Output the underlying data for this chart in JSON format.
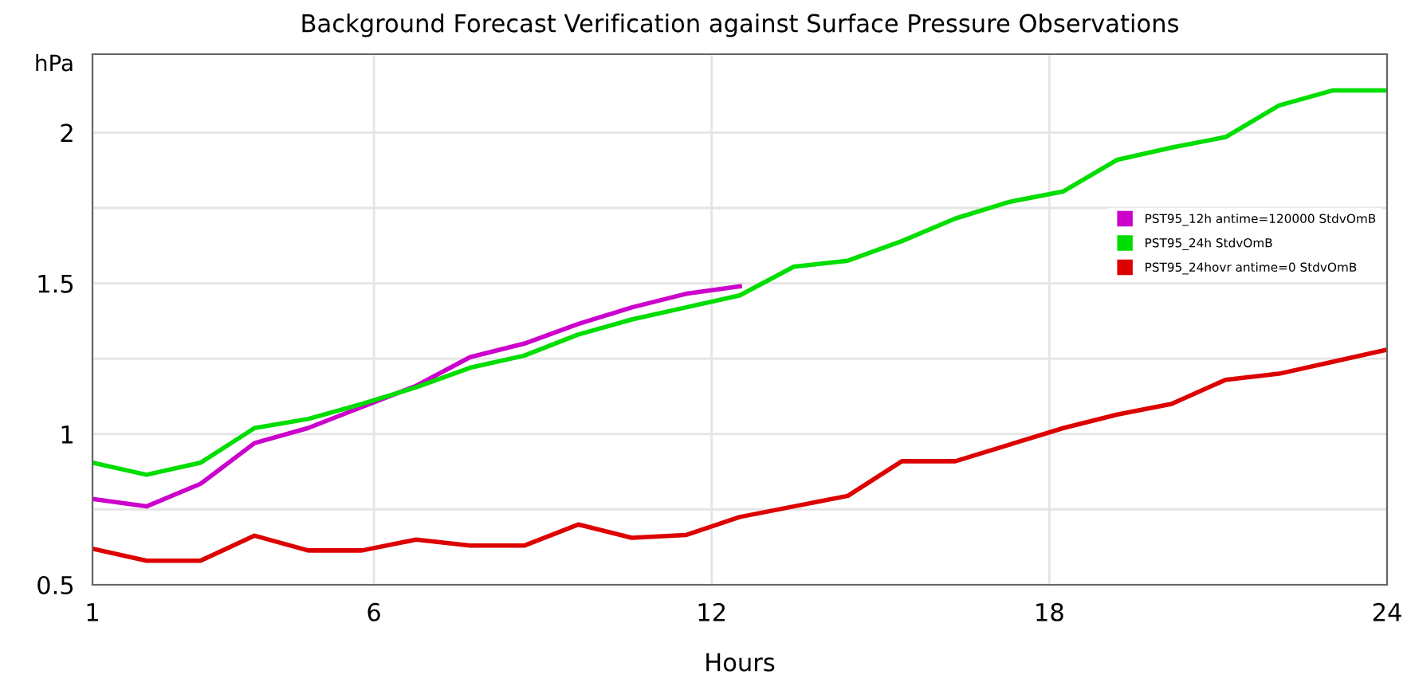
{
  "chart_data": {
    "type": "line",
    "title": "Background Forecast Verification against Surface Pressure Observations",
    "xlabel": "Hours",
    "ylabel": "hPa",
    "x": [
      1,
      1.96,
      2.92,
      3.88,
      4.83,
      5.79,
      6.75,
      7.71,
      8.67,
      9.63,
      10.58,
      11.54,
      12.5,
      13.46,
      14.42,
      15.38,
      16.33,
      17.29,
      18.25,
      19.21,
      20.17,
      21.13,
      22.08,
      23.04,
      24
    ],
    "series": [
      {
        "name": "PST95_12h antime=120000 StdvOmB",
        "color": "#cc00cc",
        "values": [
          0.785,
          0.76,
          0.835,
          0.97,
          1.02,
          1.09,
          1.16,
          1.255,
          1.3,
          1.365,
          1.42,
          1.465,
          1.49,
          null,
          null,
          null,
          null,
          null,
          null,
          null,
          null,
          null,
          null,
          null,
          null
        ]
      },
      {
        "name": "PST95_24h StdvOmB",
        "color": "#00dd00",
        "values": [
          0.905,
          0.865,
          0.905,
          1.02,
          1.05,
          1.1,
          1.155,
          1.22,
          1.26,
          1.33,
          1.38,
          1.42,
          1.46,
          1.555,
          1.575,
          1.64,
          1.715,
          1.77,
          1.805,
          1.91,
          1.95,
          1.985,
          2.09,
          2.14,
          2.14
        ]
      },
      {
        "name": "PST95_24hovr antime=0 StdvOmB",
        "color": "#dd0000",
        "values": [
          0.62,
          0.58,
          0.58,
          0.663,
          0.614,
          0.614,
          0.65,
          0.63,
          0.63,
          0.7,
          0.656,
          0.665,
          0.725,
          0.76,
          0.795,
          0.91,
          0.91,
          0.965,
          1.02,
          1.065,
          1.1,
          1.18,
          1.2,
          1.24,
          1.28
        ]
      }
    ],
    "xlim": [
      1,
      24
    ],
    "xticks": [
      1,
      6,
      12,
      18,
      24
    ],
    "ylim": [
      0.5,
      2.26
    ],
    "yticks": [
      0.5,
      {
        "value": 0.75,
        "label": null
      },
      1,
      {
        "value": 1.25,
        "label": null
      },
      1.5,
      {
        "value": 1.75,
        "label": null
      },
      2
    ],
    "grid": true,
    "legend": "top right",
    "marker": "none",
    "line_style": "solid"
  }
}
